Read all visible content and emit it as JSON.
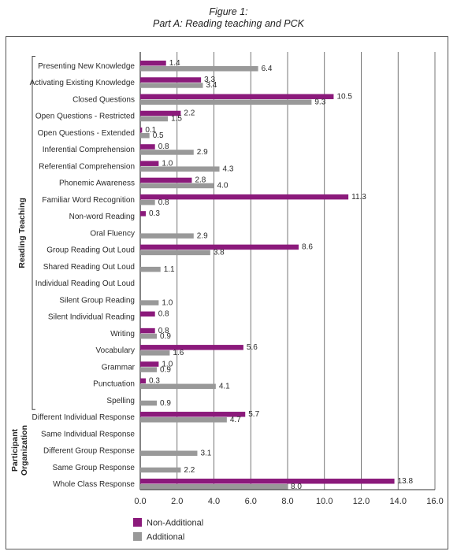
{
  "figure": {
    "number": "Figure 1:",
    "title": "Part A: Reading teaching and PCK"
  },
  "chart_data": {
    "type": "bar",
    "orientation": "horizontal",
    "xlim": [
      0,
      16
    ],
    "xticks": [
      "0.0",
      "2.0",
      "4.0",
      "6.0",
      "8.0",
      "10.0",
      "12.0",
      "14.0",
      "16.0"
    ],
    "grid": "vertical",
    "legend_position": "bottom-left",
    "categories": [
      "Presenting New Knowledge",
      "Activating Existing Knowledge",
      "Closed Questions",
      "Open Questions - Restricted",
      "Open Questions - Extended",
      "Inferential Comprehension",
      "Referential Comprehension",
      "Phonemic Awareness",
      "Familiar Word Recognition",
      "Non-word Reading",
      "Oral Fluency",
      "Group Reading Out Loud",
      "Shared Reading Out Loud",
      "Individual Reading Out Loud",
      "Silent Group Reading",
      "Silent Individual Reading",
      "Writing",
      "Vocabulary",
      "Grammar",
      "Punctuation",
      "Spelling",
      "Different Individual Response",
      "Same Individual Response",
      "Different Group Response",
      "Same Group Response",
      "Whole Class Response"
    ],
    "groups": [
      {
        "label": "Reading Teaching",
        "from": 0,
        "to": 20
      },
      {
        "label": "Participant Organization",
        "from": 21,
        "to": 25
      }
    ],
    "series": [
      {
        "name": "Non-Additional",
        "color": "#8b1a7b",
        "values": [
          1.4,
          3.3,
          10.5,
          2.2,
          0.1,
          0.8,
          1.0,
          2.8,
          11.3,
          0.3,
          null,
          8.6,
          null,
          null,
          null,
          0.8,
          0.8,
          5.6,
          1.0,
          0.3,
          null,
          5.7,
          null,
          null,
          null,
          13.8
        ],
        "labels": [
          "1.4",
          "3.3",
          "10.5",
          "2.2",
          "0.1",
          "0.8",
          "1.0",
          "2.8",
          "11.3",
          "0.3",
          "",
          "8.6",
          "",
          "",
          "",
          "0.8",
          "0.8",
          "5.6",
          "1.0",
          "0.3",
          "",
          "5.7",
          "",
          "",
          "",
          "13.8"
        ]
      },
      {
        "name": "Additional",
        "color": "#999999",
        "values": [
          6.4,
          3.4,
          9.3,
          1.5,
          0.5,
          2.9,
          4.3,
          4.0,
          0.8,
          null,
          2.9,
          3.8,
          1.1,
          null,
          1.0,
          null,
          0.9,
          1.6,
          0.9,
          4.1,
          0.9,
          4.7,
          null,
          3.1,
          2.2,
          8.0
        ],
        "labels": [
          "6.4",
          "3.4",
          "9.3",
          "1.5",
          "0.5",
          "2.9",
          "4.3",
          "4.0",
          "0.8",
          "",
          "2.9",
          "3.8",
          "1.1",
          "",
          "1.0",
          "",
          "0.9",
          "1.6",
          "0.9",
          "4.1",
          "0.9",
          "4.7",
          "",
          "3.1",
          "2.2",
          "8.0"
        ]
      }
    ]
  }
}
